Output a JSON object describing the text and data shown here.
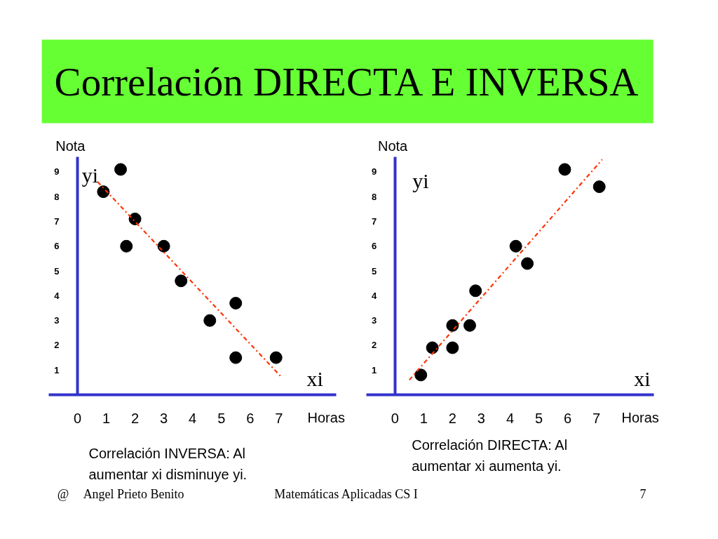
{
  "chart_data": [
    {
      "type": "scatter",
      "title": "Correlación DIRECTA E INVERSA",
      "xlabel": "Horas",
      "ylabel": "Nota",
      "xlim": [
        -1,
        9
      ],
      "ylim": [
        0,
        9.6
      ],
      "xticks": [
        0,
        1,
        2,
        3,
        4,
        5,
        6,
        7
      ],
      "yticks": [
        1,
        2,
        3,
        4,
        5,
        6,
        7,
        8,
        9
      ],
      "series": [
        {
          "marker": "circle",
          "color": "#000000",
          "x": [
            0.9,
            1.5,
            1.7,
            2.0,
            3.0,
            3.6,
            4.6,
            5.5,
            5.5,
            6.9
          ],
          "values": [
            8.2,
            9.1,
            6.0,
            7.1,
            6.0,
            4.6,
            3.0,
            3.7,
            1.5,
            1.5
          ]
        },
        {
          "type": "line",
          "line_style": "dashdot",
          "color": "#ff3300",
          "x": [
            0.7,
            7.1
          ],
          "values": [
            8.6,
            0.7
          ]
        }
      ],
      "annotations": [
        "yi",
        "xi",
        "Correlación INVERSA: Al aumentar xi disminuye yi.",
        "@",
        "Angel Prieto Benito",
        "Matemáticas Aplicadas CS I",
        "7"
      ]
    },
    {
      "type": "scatter",
      "xlabel": "Horas",
      "ylabel": "Nota",
      "xlim": [
        -1,
        9
      ],
      "ylim": [
        0,
        9.6
      ],
      "xticks": [
        0,
        1,
        2,
        3,
        4,
        5,
        6,
        7
      ],
      "yticks": [
        1,
        2,
        3,
        4,
        5,
        6,
        7,
        8,
        9
      ],
      "series": [
        {
          "marker": "circle",
          "color": "#000000",
          "x": [
            0.9,
            1.3,
            2.0,
            2.0,
            2.6,
            2.8,
            4.2,
            4.6,
            5.9,
            7.1
          ],
          "values": [
            0.8,
            1.9,
            1.9,
            2.8,
            2.8,
            4.2,
            6.0,
            5.3,
            9.1,
            8.4
          ]
        },
        {
          "type": "line",
          "line_style": "dashdot",
          "color": "#ff3300",
          "x": [
            0.5,
            7.2
          ],
          "values": [
            0.6,
            9.5
          ]
        }
      ],
      "annotations": [
        "yi",
        "xi",
        "Correlación DIRECTA: Al aumentar xi aumenta yi."
      ]
    }
  ]
}
